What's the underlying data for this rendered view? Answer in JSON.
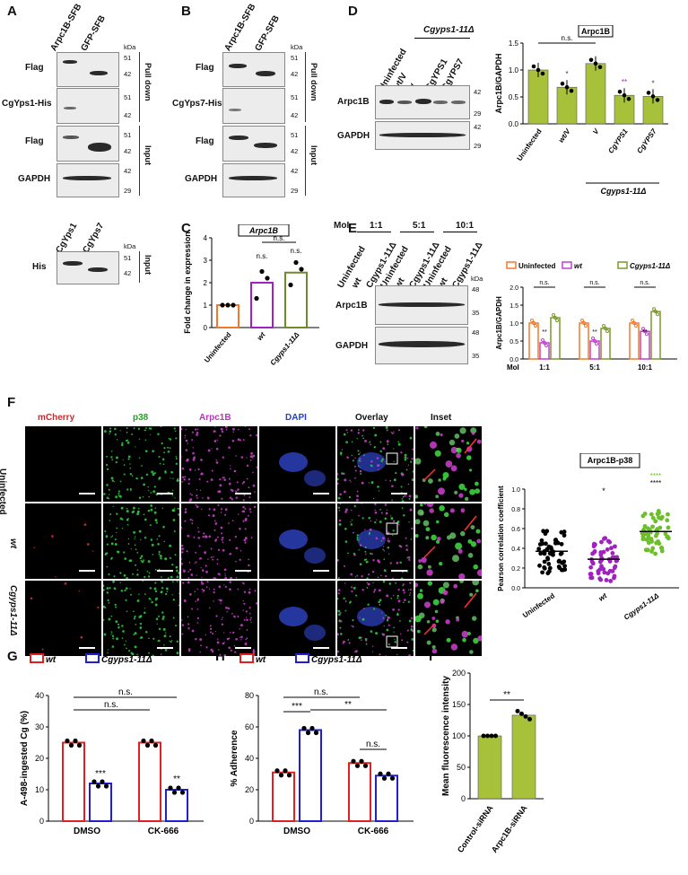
{
  "panels": {
    "A": "A",
    "B": "B",
    "C": "C",
    "D": "D",
    "E": "E",
    "F": "F",
    "G": "G",
    "H": "H",
    "I": "I"
  },
  "A": {
    "lanes": [
      "Arpc1B-SFB",
      "GFP-SFB"
    ],
    "rows": [
      "Flag",
      "CgYps1-His",
      "Flag",
      "GAPDH"
    ],
    "kda": "kDa",
    "markers": [
      "51",
      "42",
      "51",
      "42",
      "51",
      "42",
      "42",
      "29"
    ],
    "sections": [
      "Pull down",
      "Input"
    ],
    "lower_lanes": [
      "CgYps1",
      "CgYps7"
    ],
    "lower_row": "His",
    "lower_markers": [
      "51",
      "42"
    ],
    "lower_section": "Input"
  },
  "B": {
    "lanes": [
      "Arpc1B-SFB",
      "GFP-SFB"
    ],
    "rows": [
      "Flag",
      "CgYps7-His",
      "Flag",
      "GAPDH"
    ],
    "kda": "kDa",
    "markers": [
      "51",
      "42",
      "51",
      "42",
      "51",
      "42",
      "42",
      "29"
    ],
    "sections": [
      "Pull down",
      "Input"
    ]
  },
  "C": {
    "chart_data": {
      "type": "bar",
      "title": "Arpc1B",
      "categories": [
        "Uninfected",
        "wt",
        "Cgyps1-11Δ"
      ],
      "values": [
        1.0,
        2.0,
        2.45
      ],
      "points": [
        [
          1.0,
          1.0,
          1.0
        ],
        [
          1.3,
          2.5,
          2.2
        ],
        [
          1.9,
          2.9,
          2.6
        ]
      ],
      "ylabel": "Fold change in expression",
      "ylim": [
        0,
        4
      ],
      "yticks": [
        "0",
        "1",
        "2",
        "3",
        "4"
      ],
      "annotations": [
        "n.s.",
        "n.s."
      ],
      "colors": [
        "#f07a2c",
        "#a020c0",
        "#6c8b2a"
      ]
    }
  },
  "D": {
    "lanes": [
      "Uninfected",
      "wt/V",
      "V",
      "CgYPS1",
      "CgYPS7"
    ],
    "group_label": "Cgyps1-11Δ",
    "rows": [
      "Arpc1B",
      "GAPDH"
    ],
    "markers": [
      "42",
      "29",
      "42",
      "29"
    ],
    "chart_data": {
      "type": "bar",
      "title": "Arpc1B",
      "categories": [
        "Uninfected",
        "wt/V",
        "V",
        "CgYPS1",
        "CgYPS7"
      ],
      "values": [
        1.0,
        0.68,
        1.12,
        0.53,
        0.51
      ],
      "ylabel": "Arpc1B/GAPDH",
      "ylim": [
        0,
        1.5
      ],
      "yticks": [
        "0.0",
        "0.5",
        "1.0",
        "1.5"
      ],
      "annotations": [
        "n.s.",
        "*",
        "**",
        "*"
      ],
      "color": "#a7c23a",
      "group_label": "Cgyps1-11Δ"
    }
  },
  "E": {
    "moi_label": "MoI",
    "mois": [
      "1:1",
      "5:1",
      "10:1"
    ],
    "lanes": [
      "Uninfected",
      "wt",
      "Cgyps1-11Δ",
      "Uninfected",
      "wt",
      "Cgyps1-11Δ",
      "Uninfected",
      "wt",
      "Cgyps1-11Δ"
    ],
    "rows": [
      "Arpc1B",
      "GAPDH"
    ],
    "kda": "kDa",
    "markers": [
      "48",
      "35",
      "48",
      "35"
    ],
    "chart_data": {
      "type": "bar",
      "legend": [
        "Uninfected",
        "wt",
        "Cgyps1-11Δ"
      ],
      "categories": [
        "1:1",
        "5:1",
        "10:1"
      ],
      "series": [
        {
          "name": "Uninfected",
          "values": [
            1.0,
            1.0,
            1.0
          ]
        },
        {
          "name": "wt",
          "values": [
            0.45,
            0.5,
            0.77
          ]
        },
        {
          "name": "Cgyps1-11Δ",
          "values": [
            1.15,
            0.85,
            1.32
          ]
        }
      ],
      "ylabel": "Arpc1B/GAPDH",
      "xlabel": "MoI",
      "ylim": [
        0,
        2.0
      ],
      "yticks": [
        "0.0",
        "0.5",
        "1.0",
        "1.5",
        "2.0"
      ],
      "annotations": [
        "n.s.",
        "n.s.",
        "n.s.",
        "**",
        "**",
        "**"
      ],
      "colors": [
        "#f07a2c",
        "#c040d0",
        "#7a9a2a"
      ]
    }
  },
  "F": {
    "columns": [
      "mCherry",
      "p38",
      "Arpc1B",
      "DAPI",
      "Overlay",
      "Inset"
    ],
    "column_colors": [
      "#e02020",
      "#20a020",
      "#c030c0",
      "#2040d0",
      "#111111",
      "#111111"
    ],
    "rows": [
      "Uninfected",
      "wt",
      "Cgyps1-11Δ"
    ],
    "chart_data": {
      "type": "scatter",
      "title": "Arpc1B-p38",
      "categories": [
        "Uninfected",
        "wt",
        "Cgyps1-11Δ"
      ],
      "means": [
        0.37,
        0.29,
        0.57
      ],
      "ylabel": "Pearson correlation coefficient",
      "ylim": [
        0,
        1.0
      ],
      "yticks": [
        "0.0",
        "0.2",
        "0.4",
        "0.6",
        "0.8",
        "1.0"
      ],
      "annotations": [
        "*",
        "****",
        "****"
      ],
      "colors": [
        "#000000",
        "#a020c0",
        "#6cbf2a"
      ]
    }
  },
  "G": {
    "chart_data": {
      "type": "bar",
      "legend": [
        "wt",
        "Cgyps1-11Δ"
      ],
      "categories": [
        "DMSO",
        "CK-666"
      ],
      "series": [
        {
          "name": "wt",
          "values": [
            25,
            25
          ]
        },
        {
          "name": "Cgyps1-11Δ",
          "values": [
            12,
            10
          ]
        }
      ],
      "ylabel": "A-498-ingested Cg (%)",
      "ylim": [
        0,
        40
      ],
      "yticks": [
        "0",
        "10",
        "20",
        "30",
        "40"
      ],
      "annotations": [
        "n.s.",
        "n.s.",
        "***",
        "**"
      ],
      "colors": [
        "#e02020",
        "#2020d0"
      ]
    }
  },
  "H": {
    "chart_data": {
      "type": "bar",
      "legend": [
        "wt",
        "Cgyps1-11Δ"
      ],
      "categories": [
        "DMSO",
        "CK-666"
      ],
      "series": [
        {
          "name": "wt",
          "values": [
            31,
            37
          ]
        },
        {
          "name": "Cgyps1-11Δ",
          "values": [
            58,
            29
          ]
        }
      ],
      "ylabel": "% Adherence",
      "ylim": [
        0,
        80
      ],
      "yticks": [
        "0",
        "20",
        "40",
        "60",
        "80"
      ],
      "annotations": [
        "n.s.",
        "***",
        "**",
        "n.s."
      ],
      "colors": [
        "#e02020",
        "#2020d0"
      ]
    }
  },
  "I": {
    "chart_data": {
      "type": "bar",
      "categories": [
        "Control-siRNA",
        "Arpc1B-siRNA"
      ],
      "values": [
        100,
        133
      ],
      "ylabel": "Mean fluorescence intensity",
      "ylim": [
        0,
        200
      ],
      "yticks": [
        "0",
        "50",
        "100",
        "150",
        "200"
      ],
      "annotations": [
        "**"
      ],
      "color": "#a7c23a"
    }
  }
}
